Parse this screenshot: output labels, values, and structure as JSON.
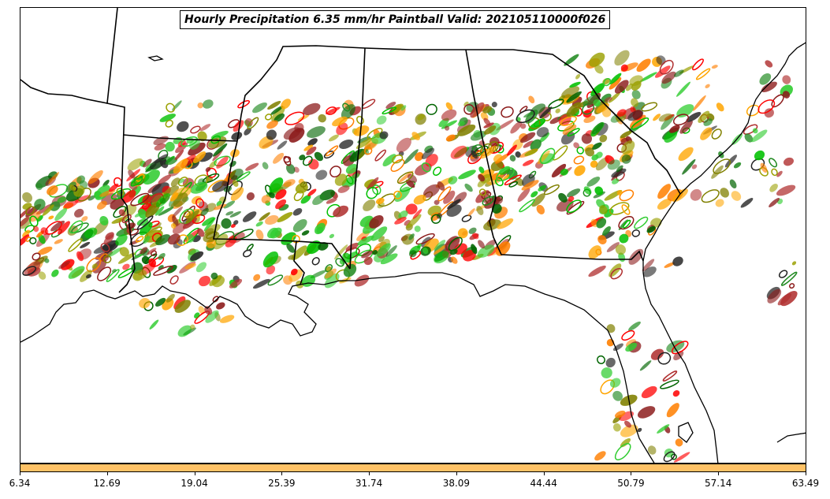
{
  "title": "Hourly Precipitation 6.35 mm/hr Paintball Valid: 202105110000f026",
  "colorbar": {
    "color": "#ffc266",
    "ticks": [
      "6.34",
      "12.69",
      "19.04",
      "25.39",
      "31.74",
      "38.09",
      "44.44",
      "50.79",
      "57.14",
      "63.49"
    ]
  },
  "member_colors": [
    "#8b1a1a",
    "#b03030",
    "#ff0000",
    "#ff7f00",
    "#ffa500",
    "#228b22",
    "#32cd32",
    "#00c000",
    "#808000",
    "#9aa000",
    "#222222",
    "#006400"
  ],
  "map": {
    "features": [
      "state-borders",
      "coastline",
      "precipitation-paintball"
    ]
  }
}
